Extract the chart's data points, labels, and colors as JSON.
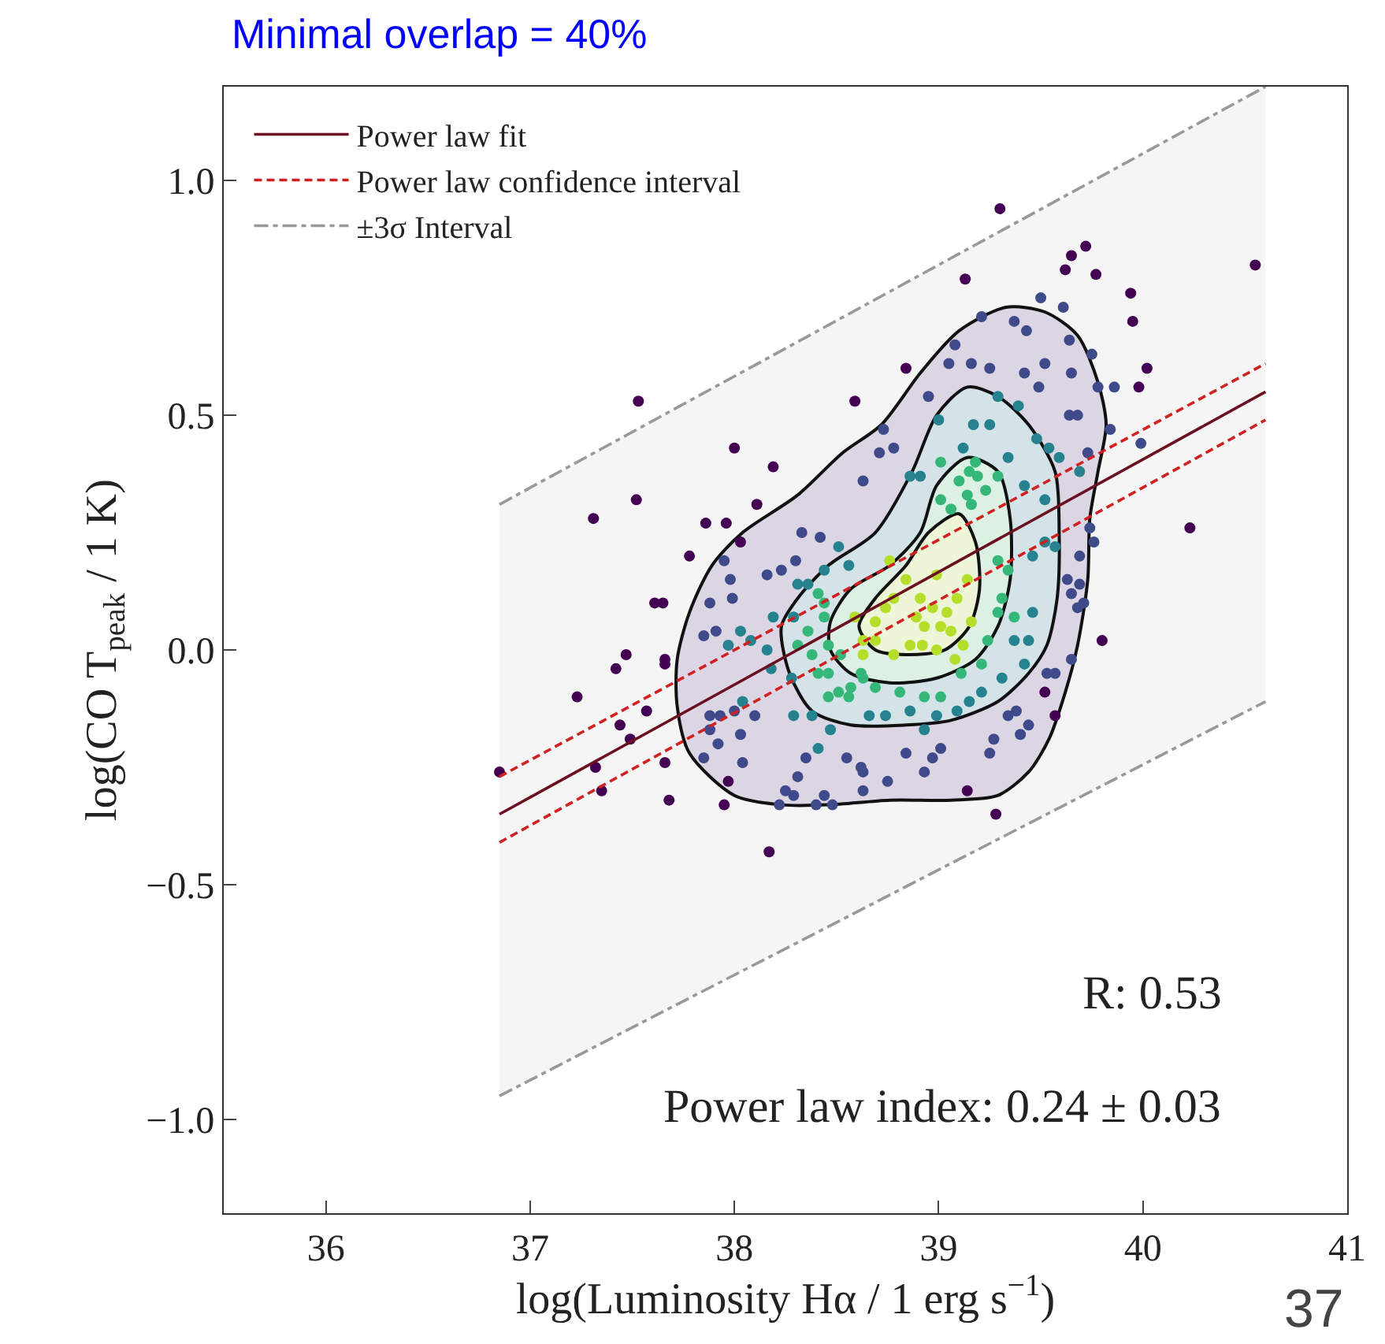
{
  "chart_data": {
    "type": "scatter",
    "title": "Minimal overlap = 40%",
    "xlabel": "log(Luminosity Hα / 1 erg s$^{−1}$)",
    "ylabel": "log(CO T$_{peak}$ / 1 K)",
    "xlim": [
      35.5,
      41
    ],
    "xticks": [
      36,
      37,
      38,
      39,
      40,
      41
    ],
    "ylim": [
      -1.2,
      1.2
    ],
    "yticks": [
      {
        "value": -1.0,
        "label": "−1.0"
      },
      {
        "value": -0.5,
        "label": "−0.5"
      },
      {
        "value": 0.0,
        "label": "0.0"
      },
      {
        "value": 0.5,
        "label": "0.5"
      },
      {
        "value": 1.0,
        "label": "1.0"
      }
    ],
    "legend": "top left",
    "marker": "circle",
    "annotations": [
      "R: 0.53",
      "Power law index: 0.24 ± 0.03",
      "37"
    ],
    "series": [
      {
        "type": "area",
        "marker": "none",
        "color": "#dcd6e4",
        "x": [
          39.33,
          39.52,
          39.68,
          39.78,
          39.82,
          39.78,
          39.74,
          39.73,
          39.68,
          39.62,
          39.54,
          39.44,
          39.29,
          39.06,
          38.76,
          38.46,
          38.23,
          38.0,
          37.78,
          37.72,
          37.72,
          37.78,
          37.89,
          38.04,
          38.31,
          38.53,
          38.72,
          38.91,
          39.1,
          39.33
        ],
        "values": [
          0.73,
          0.72,
          0.67,
          0.57,
          0.48,
          0.38,
          0.28,
          0.15,
          0.01,
          -0.09,
          -0.19,
          -0.26,
          -0.31,
          -0.32,
          -0.32,
          -0.33,
          -0.33,
          -0.31,
          -0.22,
          -0.12,
          -0.02,
          0.08,
          0.18,
          0.25,
          0.33,
          0.42,
          0.48,
          0.59,
          0.68,
          0.73
        ]
      },
      {
        "type": "area",
        "marker": "none",
        "color": "#d3e3e8",
        "x": [
          39.14,
          39.29,
          39.44,
          39.57,
          39.59,
          39.58,
          39.53,
          39.44,
          39.29,
          39.06,
          38.84,
          38.57,
          38.38,
          38.27,
          38.23,
          38.31,
          38.46,
          38.69,
          38.87,
          38.99,
          39.14
        ],
        "values": [
          0.56,
          0.54,
          0.48,
          0.38,
          0.25,
          0.11,
          0.01,
          -0.05,
          -0.11,
          -0.15,
          -0.16,
          -0.16,
          -0.13,
          -0.05,
          0.05,
          0.11,
          0.18,
          0.25,
          0.38,
          0.5,
          0.56
        ]
      },
      {
        "type": "area",
        "marker": "none",
        "color": "#dcf1e4",
        "x": [
          39.14,
          39.29,
          39.35,
          39.35,
          39.29,
          39.18,
          38.99,
          38.76,
          38.57,
          38.47,
          38.47,
          38.57,
          38.76,
          38.91,
          38.99,
          39.14
        ],
        "values": [
          0.41,
          0.38,
          0.28,
          0.15,
          0.05,
          -0.02,
          -0.06,
          -0.07,
          -0.05,
          0.0,
          0.06,
          0.13,
          0.18,
          0.25,
          0.35,
          0.41
        ]
      },
      {
        "type": "area",
        "marker": "none",
        "color": "#eef6d8",
        "x": [
          39.1,
          39.18,
          39.2,
          39.15,
          39.03,
          38.84,
          38.69,
          38.61,
          38.69,
          38.84,
          38.95,
          39.1
        ],
        "values": [
          0.29,
          0.23,
          0.13,
          0.05,
          0.0,
          -0.01,
          0.0,
          0.05,
          0.11,
          0.18,
          0.25,
          0.29
        ]
      },
      {
        "color": "#440154",
        "x": [
          40.55,
          39.3,
          39.13,
          37.53,
          38.0,
          38.19,
          37.52,
          38.11,
          37.31,
          36.85,
          37.23,
          37.47,
          37.66,
          37.32,
          37.35,
          37.66,
          37.68,
          37.95,
          37.97,
          38.17,
          40.23,
          39.8,
          39.52,
          39.14,
          39.28,
          39.57,
          39.72,
          39.65,
          39.62,
          39.77,
          39.94,
          39.95,
          40.02,
          39.98,
          38.84,
          38.59,
          37.86,
          37.96,
          37.78,
          38.03,
          37.61,
          37.65,
          37.42,
          37.57,
          37.44,
          37.49,
          37.66
        ],
        "values": [
          0.82,
          0.94,
          0.79,
          0.53,
          0.43,
          0.39,
          0.32,
          0.31,
          0.28,
          -0.26,
          -0.1,
          -0.01,
          -0.02,
          -0.25,
          -0.3,
          -0.24,
          -0.32,
          -0.33,
          -0.28,
          -0.43,
          0.26,
          0.02,
          -0.09,
          -0.3,
          -0.35,
          -0.14,
          0.86,
          0.84,
          0.81,
          0.8,
          0.76,
          0.7,
          0.6,
          0.56,
          0.6,
          0.53,
          0.27,
          0.27,
          0.2,
          0.23,
          0.1,
          0.1,
          -0.04,
          -0.13,
          -0.16,
          -0.19,
          -0.03
        ]
      },
      {
        "color": "#3e4a89",
        "x": [
          39.5,
          39.61,
          39.21,
          39.37,
          39.43,
          39.64,
          39.08,
          39.75,
          39.52,
          39.16,
          39.05,
          39.25,
          39.42,
          39.65,
          39.86,
          39.49,
          39.78,
          38.95,
          38.73,
          38.78,
          38.71,
          39.84,
          39.99,
          39.73,
          38.63,
          39.64,
          39.68,
          37.88,
          37.91,
          37.85,
          37.99,
          37.95,
          37.98,
          38.16,
          38.23,
          38.3,
          38.33,
          38.42,
          37.88,
          37.93,
          37.88,
          37.92,
          38.0,
          38.03,
          38.1,
          37.85,
          38.04,
          38.31,
          38.25,
          38.29,
          38.22,
          38.4,
          38.48,
          38.44,
          38.35,
          38.55,
          38.62,
          39.74,
          39.76,
          39.69,
          39.63,
          39.69,
          39.65,
          39.71,
          39.68,
          39.65,
          39.53,
          39.57,
          39.34,
          39.38,
          39.4,
          39.44,
          39.27,
          39.25,
          39.01,
          38.97,
          38.84,
          38.93,
          38.75,
          38.63,
          38.63
        ],
        "values": [
          0.75,
          0.73,
          0.71,
          0.7,
          0.68,
          0.66,
          0.65,
          0.63,
          0.61,
          0.61,
          0.61,
          0.6,
          0.59,
          0.59,
          0.56,
          0.56,
          0.56,
          0.54,
          0.47,
          0.43,
          0.42,
          0.47,
          0.44,
          0.42,
          0.36,
          0.5,
          0.5,
          0.1,
          0.04,
          0.03,
          0.11,
          0.19,
          0.15,
          0.16,
          0.17,
          0.19,
          0.25,
          0.24,
          -0.14,
          -0.14,
          -0.17,
          -0.2,
          -0.13,
          -0.18,
          -0.14,
          -0.23,
          -0.24,
          -0.27,
          -0.3,
          -0.31,
          -0.33,
          -0.33,
          -0.33,
          -0.31,
          -0.23,
          -0.23,
          -0.25,
          0.26,
          0.23,
          0.2,
          0.15,
          0.14,
          0.12,
          0.1,
          0.09,
          -0.02,
          -0.05,
          -0.05,
          -0.14,
          -0.13,
          -0.18,
          -0.16,
          -0.19,
          -0.22,
          -0.21,
          -0.23,
          -0.22,
          -0.26,
          -0.28,
          -0.3,
          -0.26
        ]
      },
      {
        "color": "#26828e",
        "x": [
          39.0,
          39.17,
          39.25,
          39.39,
          39.29,
          39.48,
          39.54,
          39.34,
          38.86,
          38.91,
          39.59,
          39.69,
          39.42,
          39.52,
          39.12,
          38.03,
          38.08,
          37.97,
          38.04,
          38.19,
          38.16,
          38.18,
          38.28,
          38.29,
          38.38,
          38.47,
          38.41,
          38.31,
          38.36,
          38.29,
          38.44,
          38.51,
          38.56,
          39.37,
          39.46,
          39.44,
          39.42,
          39.31,
          39.21,
          39.15,
          39.09,
          38.99,
          38.86,
          38.74,
          38.66,
          38.93,
          39.52,
          39.57,
          39.46
        ],
        "values": [
          0.49,
          0.48,
          0.48,
          0.52,
          0.54,
          0.45,
          0.43,
          0.41,
          0.37,
          0.37,
          0.41,
          0.38,
          0.35,
          0.32,
          0.43,
          0.04,
          0.02,
          0.01,
          -0.11,
          0.07,
          0.0,
          -0.04,
          -0.06,
          -0.14,
          -0.14,
          -0.17,
          -0.21,
          0.14,
          0.14,
          0.07,
          0.17,
          0.22,
          0.18,
          0.02,
          0.08,
          0.02,
          -0.03,
          -0.06,
          -0.09,
          -0.11,
          -0.13,
          -0.14,
          -0.13,
          -0.14,
          -0.14,
          -0.17,
          0.23,
          0.22,
          0.2
        ]
      },
      {
        "color": "#35b779",
        "x": [
          39.18,
          39.15,
          39.19,
          39.01,
          39.1,
          39.29,
          39.14,
          39.23,
          39.01,
          39.06,
          39.16,
          38.41,
          38.44,
          38.44,
          38.36,
          38.46,
          38.31,
          38.38,
          38.52,
          38.46,
          38.41,
          38.57,
          38.51,
          38.46,
          38.56,
          38.63,
          38.62,
          38.69,
          38.81,
          38.93,
          39.01,
          39.11,
          39.21,
          39.24,
          39.29,
          39.31,
          39.29,
          39.34,
          39.37
        ],
        "values": [
          0.4,
          0.38,
          0.37,
          0.4,
          0.36,
          0.37,
          0.33,
          0.34,
          0.32,
          0.3,
          0.31,
          0.12,
          0.1,
          0.07,
          0.04,
          0.01,
          0.01,
          -0.01,
          -0.01,
          -0.05,
          -0.05,
          -0.08,
          -0.09,
          -0.1,
          -0.1,
          -0.06,
          -0.05,
          -0.08,
          -0.09,
          -0.1,
          -0.1,
          -0.05,
          -0.03,
          0.02,
          0.08,
          0.11,
          0.19,
          0.17,
          0.07
        ]
      },
      {
        "color": "#b5de2b",
        "x": [
          38.59,
          38.63,
          38.63,
          38.76,
          38.84,
          38.91,
          38.99,
          38.78,
          38.89,
          38.93,
          39.01,
          38.86,
          38.92,
          38.99,
          39.06,
          39.04,
          38.97,
          38.74,
          38.69,
          38.78,
          39.08,
          39.12,
          39.16,
          39.09,
          39.14,
          38.69
        ],
        "values": [
          0.07,
          0.02,
          -0.01,
          0.19,
          0.15,
          0.11,
          0.16,
          0.11,
          0.07,
          0.05,
          0.05,
          0.01,
          0.01,
          0.0,
          0.04,
          0.08,
          0.09,
          0.09,
          0.06,
          -0.01,
          -0.02,
          0.01,
          0.06,
          0.11,
          0.15,
          0.02
        ]
      },
      {
        "type": "line",
        "name": "Power law fit",
        "color": "#6b1020",
        "line_style": "solid",
        "marker": "none",
        "x": [
          36.85,
          40.6
        ],
        "values": [
          -0.35,
          0.55
        ],
        "lower": [
          -0.95,
          -0.11
        ],
        "upper": [
          0.31,
          1.2
        ]
      },
      {
        "type": "line",
        "name": "Power law confidence interval",
        "color": "#d02020",
        "line_style": "dashed",
        "marker": "none",
        "x": [
          36.85,
          40.6
        ],
        "values": [
          -0.27,
          0.61
        ]
      },
      {
        "type": "line",
        "color": "#d02020",
        "line_style": "dashed",
        "marker": "none",
        "x": [
          36.85,
          40.6
        ],
        "values": [
          -0.41,
          0.49
        ]
      },
      {
        "type": "line",
        "name": "±3σ Interval",
        "color": "#999999",
        "line_style": "dashdot",
        "marker": "none",
        "x": [
          36.85,
          40.6
        ],
        "values": [
          0.31,
          1.2
        ]
      },
      {
        "type": "line",
        "color": "#999999",
        "line_style": "dashdot",
        "marker": "none",
        "x": [
          36.85,
          40.6
        ],
        "values": [
          -0.95,
          -0.11
        ]
      }
    ]
  }
}
